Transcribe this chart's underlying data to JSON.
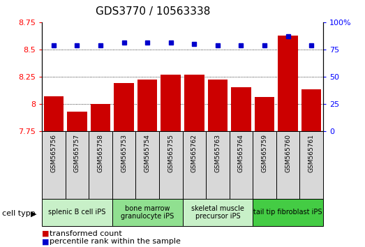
{
  "title": "GDS3770 / 10563338",
  "samples": [
    "GSM565756",
    "GSM565757",
    "GSM565758",
    "GSM565753",
    "GSM565754",
    "GSM565755",
    "GSM565762",
    "GSM565763",
    "GSM565764",
    "GSM565759",
    "GSM565760",
    "GSM565761"
  ],
  "red_bars": [
    8.07,
    7.93,
    8.0,
    8.19,
    8.22,
    8.27,
    8.27,
    8.22,
    8.15,
    8.06,
    8.63,
    8.13
  ],
  "blue_dots": [
    79,
    79,
    79,
    81,
    81,
    81,
    80,
    79,
    79,
    79,
    87,
    79
  ],
  "bar_bottom": 7.75,
  "ylim_left": [
    7.75,
    8.75
  ],
  "ylim_right": [
    0,
    100
  ],
  "yticks_left": [
    7.75,
    8.0,
    8.25,
    8.5,
    8.75
  ],
  "yticks_right": [
    0,
    25,
    50,
    75,
    100
  ],
  "left_tick_labels": [
    "7.75",
    "8",
    "8.25",
    "8.5",
    "8.75"
  ],
  "right_tick_labels": [
    "0",
    "25",
    "50",
    "75",
    "100%"
  ],
  "bar_color": "#cc0000",
  "dot_color": "#0000cc",
  "cell_groups": [
    {
      "label": "splenic B cell iPS",
      "start": 0,
      "end": 3,
      "color": "#c8f0c8"
    },
    {
      "label": "bone marrow\ngranulocyte iPS",
      "start": 3,
      "end": 6,
      "color": "#90e090"
    },
    {
      "label": "skeletal muscle\nprecursor iPS",
      "start": 6,
      "end": 9,
      "color": "#c8f0c8"
    },
    {
      "label": "tail tip fibroblast iPS",
      "start": 9,
      "end": 12,
      "color": "#44cc44"
    }
  ],
  "sample_box_color": "#d8d8d8",
  "cell_type_label": "cell type",
  "legend_items": [
    {
      "label": "transformed count",
      "color": "#cc0000"
    },
    {
      "label": "percentile rank within the sample",
      "color": "#0000cc"
    }
  ],
  "grid_style": "dotted",
  "bar_width": 0.85,
  "title_fontsize": 11,
  "tick_fontsize": 8,
  "sample_fontsize": 6.5,
  "group_fontsize": 7,
  "legend_fontsize": 8
}
